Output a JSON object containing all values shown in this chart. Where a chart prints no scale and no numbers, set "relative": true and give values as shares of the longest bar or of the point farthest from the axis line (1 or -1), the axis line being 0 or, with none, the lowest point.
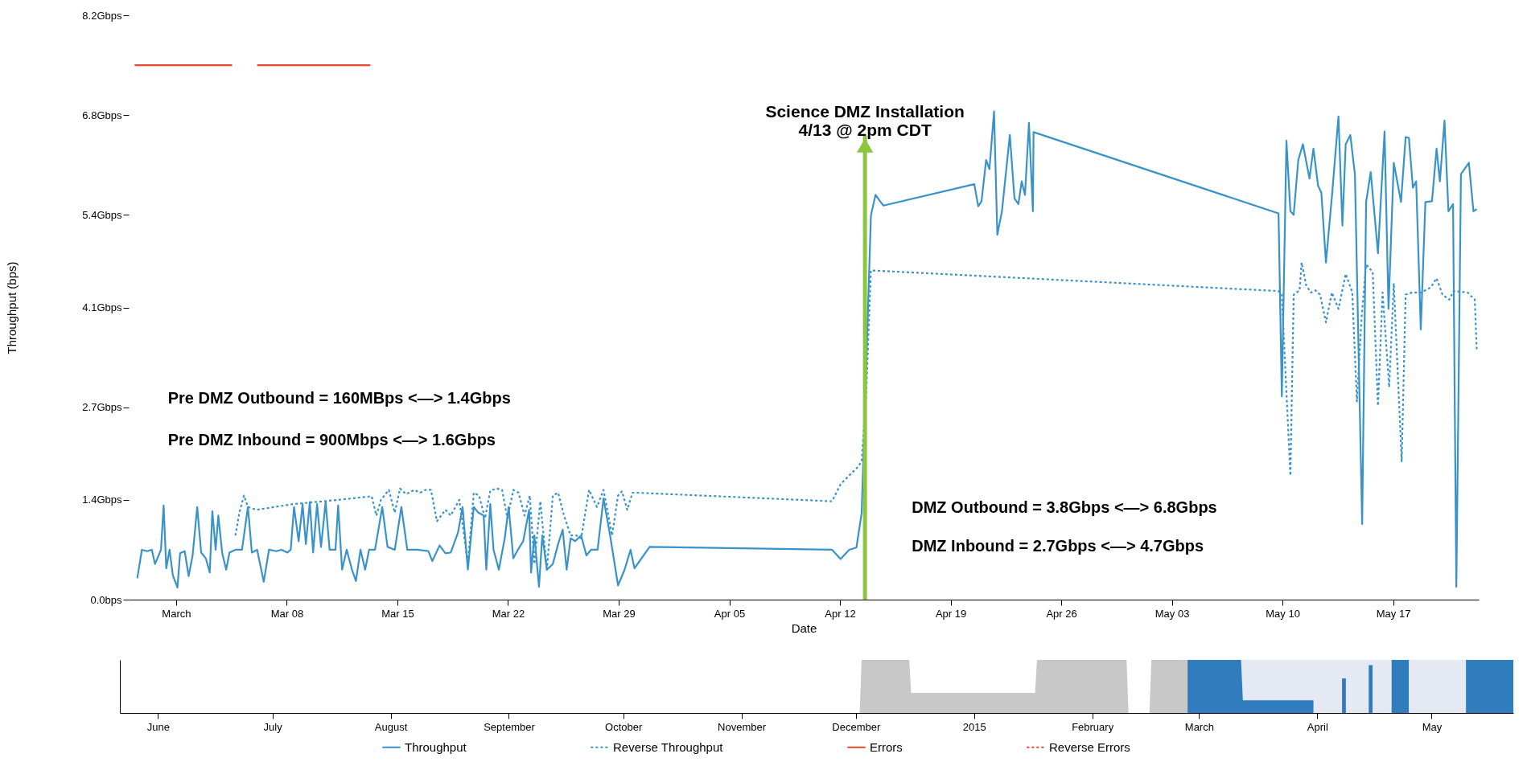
{
  "chart_data": [
    {
      "type": "line",
      "xlabel": "Date",
      "ylabel": "Throughput (bps)",
      "legend": "bottom",
      "xlim": [
        "2015-02-26T00:00",
        "2015-05-22T10:00"
      ],
      "xticks": [
        {
          "value": "2015-03-01",
          "label": "March"
        },
        {
          "value": "2015-03-08",
          "label": "Mar 08"
        },
        {
          "value": "2015-03-15",
          "label": "Mar 15"
        },
        {
          "value": "2015-03-22",
          "label": "Mar 22"
        },
        {
          "value": "2015-03-29",
          "label": "Mar 29"
        },
        {
          "value": "2015-04-05",
          "label": "Apr 05"
        },
        {
          "value": "2015-04-12",
          "label": "Apr 12"
        },
        {
          "value": "2015-04-19",
          "label": "Apr 19"
        },
        {
          "value": "2015-04-26",
          "label": "Apr 26"
        },
        {
          "value": "2015-05-03",
          "label": "May 03"
        },
        {
          "value": "2015-05-10",
          "label": "May 10"
        },
        {
          "value": "2015-05-17",
          "label": "May 17"
        }
      ],
      "ylim": [
        0,
        8.2
      ],
      "yticks": [
        {
          "value": 0,
          "label": "0.0bps"
        },
        {
          "value": 1.4,
          "label": "1.4Gbps"
        },
        {
          "value": 2.7,
          "label": "2.7Gbps"
        },
        {
          "value": 4.1,
          "label": "4.1Gbps"
        },
        {
          "value": 5.4,
          "label": "5.4Gbps"
        },
        {
          "value": 6.8,
          "label": "6.8Gbps"
        },
        {
          "value": 8.2,
          "label": "8.2Gbps"
        }
      ],
      "ref_lines": [
        {
          "axis": "x",
          "value": "2015-04-13T14:00",
          "label": "Science DMZ Installation\n4/13 @ 2pm CDT",
          "color": "#8cc63f"
        }
      ],
      "series": [
        {
          "name": "Throughput",
          "color": "#3a93c8",
          "line_style": "solid",
          "x": [
            "2015-02-26T13:00",
            "2015-02-26T20:00",
            "2015-02-27T04:00",
            "2015-02-27T11:00",
            "2015-02-27T16:00",
            "2015-02-28T01:00",
            "2015-02-28T05:00",
            "2015-02-28T09:00",
            "2015-02-28T14:00",
            "2015-02-28T19:00",
            "2015-03-01T02:00",
            "2015-03-01T06:00",
            "2015-03-01T13:00",
            "2015-03-01T19:00",
            "2015-03-02T01:00",
            "2015-03-02T08:00",
            "2015-03-02T14:00",
            "2015-03-02T21:00",
            "2015-03-03T03:00",
            "2015-03-03T07:00",
            "2015-03-03T12:00",
            "2015-03-03T16:00",
            "2015-03-03T22:00",
            "2015-03-04T04:00",
            "2015-03-04T09:00",
            "2015-03-04T18:00",
            "2015-03-05T04:00",
            "2015-03-05T13:00",
            "2015-03-05T19:00",
            "2015-03-06T03:00",
            "2015-03-06T13:00",
            "2015-03-06T21:00",
            "2015-03-07T08:00",
            "2015-03-07T16:00",
            "2015-03-08T01:00",
            "2015-03-08T06:00",
            "2015-03-08T11:00",
            "2015-03-08T18:00",
            "2015-03-09T00:00",
            "2015-03-09T05:00",
            "2015-03-09T11:00",
            "2015-03-09T16:00",
            "2015-03-09T22:00",
            "2015-03-10T04:00",
            "2015-03-10T11:00",
            "2015-03-10T17:00",
            "2015-03-11T02:00",
            "2015-03-11T06:00",
            "2015-03-11T12:00",
            "2015-03-11T19:00",
            "2015-03-12T03:00",
            "2015-03-12T09:00",
            "2015-03-12T16:00",
            "2015-03-12T23:00",
            "2015-03-13T05:00",
            "2015-03-13T14:00",
            "2015-03-14T01:00",
            "2015-03-14T09:00",
            "2015-03-14T20:00",
            "2015-03-15T06:00",
            "2015-03-15T15:00",
            "2015-03-16T06:00",
            "2015-03-16T23:00",
            "2015-03-17T05:00",
            "2015-03-17T16:00",
            "2015-03-18T01:00",
            "2015-03-18T09:00",
            "2015-03-18T20:00",
            "2015-03-19T03:00",
            "2015-03-19T11:00",
            "2015-03-19T20:00",
            "2015-03-20T03:00",
            "2015-03-20T11:00",
            "2015-03-20T15:00",
            "2015-03-20T21:00",
            "2015-03-21T02:00",
            "2015-03-21T10:00",
            "2015-03-21T19:00",
            "2015-03-22T01:00",
            "2015-03-22T08:00",
            "2015-03-22T15:00",
            "2015-03-22T23:00",
            "2015-03-23T08:00",
            "2015-03-23T11:00",
            "2015-03-23T16:00",
            "2015-03-23T23:00",
            "2015-03-24T04:00",
            "2015-03-24T11:00",
            "2015-03-24T20:00",
            "2015-03-25T04:00",
            "2015-03-25T11:00",
            "2015-03-25T17:00",
            "2015-03-25T23:00",
            "2015-03-26T06:00",
            "2015-03-26T15:00",
            "2015-03-26T23:00",
            "2015-03-27T06:00",
            "2015-03-27T16:00",
            "2015-03-28T01:00",
            "2015-03-28T11:00",
            "2015-03-28T23:00",
            "2015-03-29T09:00",
            "2015-03-29T18:00",
            "2015-03-30T00:00",
            "2015-03-30T23:00",
            "2015-04-11T12:00",
            "2015-04-12T01:00",
            "2015-04-12T14:00",
            "2015-04-13T01:00",
            "2015-04-13T09:00",
            "2015-04-13T23:00",
            "2015-04-14T06:00",
            "2015-04-14T13:00",
            "2015-04-14T18:00",
            "2015-04-20T12:00",
            "2015-04-20T18:00",
            "2015-04-20T23:00",
            "2015-04-21T06:00",
            "2015-04-21T11:00",
            "2015-04-21T18:00",
            "2015-04-21T23:00",
            "2015-04-22T06:00",
            "2015-04-22T18:00",
            "2015-04-23T01:00",
            "2015-04-23T07:00",
            "2015-04-23T12:00",
            "2015-04-23T17:00",
            "2015-04-23T23:00",
            "2015-04-24T05:00",
            "2015-04-24T06:00",
            "2015-05-09T18:00",
            "2015-05-09T23:00",
            "2015-05-10T06:00",
            "2015-05-10T12:00",
            "2015-05-10T17:00",
            "2015-05-11T00:00",
            "2015-05-11T07:00",
            "2015-05-11T17:00",
            "2015-05-11T23:00",
            "2015-05-12T06:00",
            "2015-05-12T11:00",
            "2015-05-12T18:00",
            "2015-05-13T03:00",
            "2015-05-13T13:00",
            "2015-05-13T19:00",
            "2015-05-14T00:00",
            "2015-05-14T07:00",
            "2015-05-14T14:00",
            "2015-05-15T01:00",
            "2015-05-15T07:00",
            "2015-05-15T14:00",
            "2015-05-16T01:00",
            "2015-05-16T11:00",
            "2015-05-16T17:00",
            "2015-05-17T01:00",
            "2015-05-17T12:00",
            "2015-05-17T19:00",
            "2015-05-18T00:00",
            "2015-05-18T06:00",
            "2015-05-18T11:00",
            "2015-05-18T18:00",
            "2015-05-19T01:00",
            "2015-05-19T11:00",
            "2015-05-19T18:00",
            "2015-05-19T23:00",
            "2015-05-20T06:00",
            "2015-05-20T12:00",
            "2015-05-20T19:00",
            "2015-05-21T00:00",
            "2015-05-21T07:00",
            "2015-05-21T19:00",
            "2015-05-22T02:00",
            "2015-05-22T07:00"
          ],
          "values": [
            0.3,
            0.7,
            0.68,
            0.7,
            0.5,
            0.7,
            1.32,
            0.44,
            0.7,
            0.34,
            0.17,
            0.65,
            0.68,
            0.33,
            0.62,
            1.3,
            0.66,
            0.58,
            0.38,
            1.24,
            0.7,
            1.18,
            0.65,
            0.42,
            0.66,
            0.7,
            0.7,
            1.3,
            0.66,
            0.7,
            0.25,
            0.7,
            0.68,
            0.7,
            0.66,
            0.7,
            1.3,
            0.82,
            1.34,
            0.78,
            1.37,
            0.66,
            1.34,
            0.74,
            1.37,
            0.7,
            0.7,
            1.32,
            0.42,
            0.7,
            0.42,
            0.26,
            0.7,
            0.42,
            0.7,
            0.7,
            1.3,
            0.74,
            0.7,
            1.3,
            0.7,
            0.7,
            0.68,
            0.54,
            0.76,
            0.65,
            0.66,
            0.94,
            1.3,
            0.42,
            1.3,
            1.22,
            1.18,
            0.42,
            1.34,
            0.7,
            0.42,
            0.86,
            1.3,
            0.58,
            0.7,
            0.82,
            1.26,
            0.38,
            0.9,
            0.18,
            0.9,
            0.42,
            0.5,
            0.78,
            0.98,
            0.42,
            0.86,
            0.82,
            0.9,
            0.62,
            0.7,
            0.7,
            1.42,
            0.9,
            0.2,
            0.42,
            0.7,
            0.44,
            0.74,
            0.7,
            0.57,
            0.7,
            0.73,
            1.22,
            5.39,
            5.68,
            5.59,
            5.53,
            5.83,
            5.52,
            5.59,
            6.17,
            6.04,
            6.85,
            5.12,
            5.45,
            6.52,
            5.63,
            5.55,
            5.87,
            5.68,
            6.69,
            5.45,
            6.56,
            5.42,
            2.85,
            6.44,
            5.45,
            5.4,
            6.17,
            6.39,
            5.91,
            6.33,
            5.81,
            5.71,
            4.73,
            5.65,
            6.78,
            5.25,
            6.39,
            6.52,
            5.97,
            1.06,
            5.58,
            6.0,
            4.86,
            6.57,
            4.08,
            6.13,
            5.58,
            6.49,
            6.48,
            5.78,
            5.87,
            3.79,
            5.58,
            5.59,
            6.33,
            5.87,
            6.72,
            5.45,
            5.55,
            0.18,
            5.97,
            6.13,
            5.45,
            5.48
          ]
        },
        {
          "name": "Reverse Throughput",
          "color": "#3a93c8",
          "line_style": "dotted",
          "x": [
            "2015-03-04T18:00",
            "2015-03-05T00:00",
            "2015-03-05T07:00",
            "2015-03-05T13:00",
            "2015-03-06T02:00",
            "2015-03-08T09:00",
            "2015-03-11T06:00",
            "2015-03-13T09:00",
            "2015-03-13T16:00",
            "2015-03-13T23:00",
            "2015-03-14T11:00",
            "2015-03-14T20:00",
            "2015-03-15T04:00",
            "2015-03-15T13:00",
            "2015-03-16T02:00",
            "2015-03-16T10:00",
            "2015-03-16T19:00",
            "2015-03-17T03:00",
            "2015-03-17T12:00",
            "2015-03-18T01:00",
            "2015-03-18T09:00",
            "2015-03-18T22:00",
            "2015-03-19T11:00",
            "2015-03-19T20:00",
            "2015-03-20T04:00",
            "2015-03-20T13:00",
            "2015-03-20T21:00",
            "2015-03-21T06:00",
            "2015-03-21T15:00",
            "2015-03-21T23:00",
            "2015-03-22T08:00",
            "2015-03-22T16:00",
            "2015-03-23T01:00",
            "2015-03-23T09:00",
            "2015-03-23T16:00",
            "2015-03-24T01:00",
            "2015-03-24T11:00",
            "2015-03-24T20:00",
            "2015-03-25T04:00",
            "2015-03-25T13:00",
            "2015-03-25T23:00",
            "2015-03-26T08:00",
            "2015-03-26T15:00",
            "2015-03-27T03:00",
            "2015-03-27T15:00",
            "2015-03-28T01:00",
            "2015-03-28T14:00",
            "2015-03-28T23:00",
            "2015-03-29T05:00",
            "2015-03-29T13:00",
            "2015-03-29T21:00",
            "2015-03-30T04:00",
            "2015-04-11T12:00",
            "2015-04-12T01:00",
            "2015-04-12T14:00",
            "2015-04-13T03:00",
            "2015-04-13T09:00",
            "2015-04-13T16:00",
            "2015-04-13T23:00",
            "2015-05-09T18:00",
            "2015-05-09T23:00",
            "2015-05-10T12:00",
            "2015-05-10T17:00",
            "2015-05-11T02:00",
            "2015-05-11T05:00",
            "2015-05-11T12:00",
            "2015-05-11T19:00",
            "2015-05-12T02:00",
            "2015-05-12T09:00",
            "2015-05-12T18:00",
            "2015-05-13T03:00",
            "2015-05-13T13:00",
            "2015-05-14T00:00",
            "2015-05-14T10:00",
            "2015-05-14T17:00",
            "2015-05-15T00:00",
            "2015-05-15T07:00",
            "2015-05-15T17:00",
            "2015-05-16T01:00",
            "2015-05-16T08:00",
            "2015-05-16T18:00",
            "2015-05-17T01:00",
            "2015-05-17T13:00",
            "2015-05-17T19:00",
            "2015-05-18T05:00",
            "2015-05-18T19:00",
            "2015-05-19T09:00",
            "2015-05-19T18:00",
            "2015-05-20T03:00",
            "2015-05-20T13:00",
            "2015-05-20T20:00",
            "2015-05-21T17:00",
            "2015-05-22T04:00",
            "2015-05-22T07:00"
          ],
          "values": [
            0.9,
            1.22,
            1.46,
            1.3,
            1.26,
            1.34,
            1.4,
            1.45,
            1.18,
            1.4,
            1.54,
            1.22,
            1.56,
            1.48,
            1.54,
            1.5,
            1.54,
            1.54,
            1.1,
            1.26,
            1.18,
            1.4,
            0.5,
            1.5,
            1.46,
            1.14,
            1.53,
            1.56,
            1.54,
            1.14,
            1.54,
            1.5,
            1.18,
            1.46,
            0.5,
            1.38,
            0.42,
            1.46,
            1.5,
            1.18,
            0.9,
            0.9,
            0.86,
            1.54,
            1.3,
            1.54,
            0.9,
            1.46,
            1.52,
            1.26,
            1.5,
            1.5,
            1.38,
            1.62,
            1.74,
            1.86,
            1.94,
            2.91,
            4.62,
            4.33,
            4.28,
            1.74,
            4.28,
            4.34,
            4.73,
            4.41,
            4.31,
            4.34,
            4.28,
            3.89,
            4.31,
            4.08,
            4.57,
            4.31,
            2.78,
            3.95,
            4.7,
            4.6,
            2.72,
            4.31,
            2.98,
            4.44,
            1.94,
            4.28,
            4.31,
            4.31,
            4.38,
            4.51,
            4.28,
            4.21,
            4.33,
            4.31,
            4.21,
            3.5
          ]
        },
        {
          "name": "Errors",
          "color": "#e8452f",
          "line_style": "solid",
          "x": [
            "2015-02-26T09:00",
            "2015-03-04T13:00",
            "2015-03-05T08:00",
            "2015-03-06T03:00",
            "2015-03-13T07:00"
          ],
          "values": [
            7.5,
            7.5,
            null,
            7.5,
            7.5
          ]
        },
        {
          "name": "Reverse Errors",
          "color": "#e8452f",
          "line_style": "dotted"
        }
      ],
      "annotations": [
        "Pre DMZ Outbound =  160MBps <—> 1.4Gbps",
        "Pre DMZ Inbound = 900Mbps <—> 1.6Gbps",
        "DMZ Outbound =  3.8Gbps <—> 6.8Gbps",
        "DMZ Inbound =  2.7Gbps <—> 4.7Gbps"
      ]
    },
    {
      "type": "area",
      "relative": true,
      "tick_labels": "x",
      "xlim": [
        "2014-05-22T00:00",
        "2015-05-22T10:00"
      ],
      "xticks": [
        {
          "value": "2014-06-01",
          "label": "June"
        },
        {
          "value": "2014-07-01",
          "label": "July"
        },
        {
          "value": "2014-08-01",
          "label": "August"
        },
        {
          "value": "2014-09-01",
          "label": "September"
        },
        {
          "value": "2014-10-01",
          "label": "October"
        },
        {
          "value": "2014-11-01",
          "label": "November"
        },
        {
          "value": "2014-12-01",
          "label": "December"
        },
        {
          "value": "2015-01-01",
          "label": "2015"
        },
        {
          "value": "2015-02-01",
          "label": "February"
        },
        {
          "value": "2015-03-01",
          "label": "March"
        },
        {
          "value": "2015-04-01",
          "label": "April"
        },
        {
          "value": "2015-05-01",
          "label": "May"
        }
      ],
      "bands": [
        {
          "axis": "x",
          "from": "2015-02-26T00:00",
          "to": "2015-05-22T10:00",
          "color": "#e4e9f4"
        }
      ],
      "series": [
        {
          "color": "#c8c8c8",
          "x": [
            "2014-12-02T00:00",
            "2014-12-02T12:00",
            "2014-12-15T00:00",
            "2014-12-15T12:00",
            "2015-01-17T00:00",
            "2015-01-17T12:00",
            "2015-02-10T00:00",
            "2015-02-10T12:00",
            "2015-02-16T00:00",
            "2015-02-16T12:00",
            "2015-02-26T00:00"
          ],
          "values": [
            0,
            1,
            1,
            0.38,
            0.38,
            1,
            1,
            0,
            0,
            1,
            1
          ]
        },
        {
          "color": "#2f7dbd",
          "x": [
            "2015-02-26T00:00",
            "2015-03-12T00:00",
            "2015-03-12T12:00",
            "2015-03-31T00:00",
            "2015-04-04T00:00",
            "2015-04-07T12:00",
            "2015-04-08T12:00",
            "2015-04-11T00:00",
            "2015-04-14T12:00",
            "2015-04-15T12:00",
            "2015-04-18T00:00",
            "2015-04-20T12:00",
            "2015-04-25T00:00",
            "2015-05-01T00:00",
            "2015-05-10T00:00",
            "2015-05-22T10:00"
          ],
          "values": [
            1,
            1,
            0.24,
            0.24,
            null,
            0.65,
            0.65,
            null,
            0.9,
            0.9,
            null,
            1,
            1,
            null,
            1,
            1
          ]
        }
      ]
    }
  ]
}
